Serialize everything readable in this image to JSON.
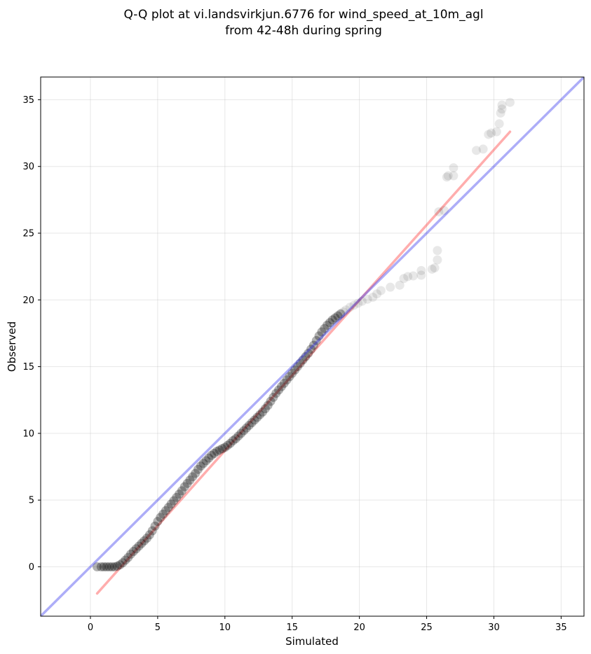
{
  "chart_data": {
    "type": "scatter",
    "title": "Q-Q plot at vi.landsvirkjun.6776 for wind_speed_at_10m_agl",
    "subtitle": "from 42-48h during spring",
    "xlabel": "Simulated",
    "ylabel": "Observed",
    "xlim": [
      -3.7,
      36.7
    ],
    "ylim": [
      -3.7,
      36.7
    ],
    "xticks": [
      "0",
      "5",
      "10",
      "15",
      "20",
      "25",
      "30",
      "35"
    ],
    "yticks": [
      "0",
      "5",
      "10",
      "15",
      "20",
      "25",
      "30",
      "35"
    ],
    "grid": true,
    "series": [
      {
        "type": "scatter",
        "color": "#000000",
        "points": [
          [
            0.5,
            0.0
          ],
          [
            0.8,
            0.0
          ],
          [
            1.0,
            0.0
          ],
          [
            1.2,
            0.0
          ],
          [
            1.4,
            0.0
          ],
          [
            1.6,
            0.0
          ],
          [
            1.8,
            0.0
          ],
          [
            2.0,
            0.05
          ],
          [
            2.2,
            0.15
          ],
          [
            2.4,
            0.3
          ],
          [
            2.6,
            0.5
          ],
          [
            2.8,
            0.7
          ],
          [
            3.0,
            0.95
          ],
          [
            3.2,
            1.15
          ],
          [
            3.4,
            1.35
          ],
          [
            3.6,
            1.55
          ],
          [
            3.8,
            1.75
          ],
          [
            4.0,
            1.95
          ],
          [
            4.2,
            2.15
          ],
          [
            4.4,
            2.4
          ],
          [
            4.6,
            2.7
          ],
          [
            4.8,
            3.05
          ],
          [
            5.0,
            3.4
          ],
          [
            5.2,
            3.7
          ],
          [
            5.4,
            3.95
          ],
          [
            5.6,
            4.2
          ],
          [
            5.8,
            4.45
          ],
          [
            6.0,
            4.7
          ],
          [
            6.2,
            4.95
          ],
          [
            6.4,
            5.2
          ],
          [
            6.6,
            5.45
          ],
          [
            6.8,
            5.7
          ],
          [
            7.0,
            6.0
          ],
          [
            7.2,
            6.25
          ],
          [
            7.4,
            6.5
          ],
          [
            7.6,
            6.75
          ],
          [
            7.8,
            7.0
          ],
          [
            8.0,
            7.3
          ],
          [
            8.2,
            7.55
          ],
          [
            8.4,
            7.75
          ],
          [
            8.6,
            7.95
          ],
          [
            8.8,
            8.15
          ],
          [
            9.0,
            8.35
          ],
          [
            9.2,
            8.5
          ],
          [
            9.4,
            8.65
          ],
          [
            9.6,
            8.75
          ],
          [
            9.8,
            8.85
          ],
          [
            10.0,
            8.95
          ],
          [
            10.2,
            9.1
          ],
          [
            10.4,
            9.25
          ],
          [
            10.6,
            9.45
          ],
          [
            10.8,
            9.6
          ],
          [
            11.0,
            9.8
          ],
          [
            11.2,
            10.0
          ],
          [
            11.4,
            10.2
          ],
          [
            11.6,
            10.4
          ],
          [
            11.8,
            10.6
          ],
          [
            12.0,
            10.8
          ],
          [
            12.2,
            11.0
          ],
          [
            12.4,
            11.2
          ],
          [
            12.6,
            11.4
          ],
          [
            12.8,
            11.6
          ],
          [
            13.0,
            11.85
          ],
          [
            13.2,
            12.1
          ],
          [
            13.4,
            12.4
          ],
          [
            13.6,
            12.7
          ],
          [
            13.8,
            13.0
          ],
          [
            14.0,
            13.25
          ],
          [
            14.2,
            13.5
          ],
          [
            14.4,
            13.75
          ],
          [
            14.6,
            14.0
          ],
          [
            14.8,
            14.25
          ],
          [
            15.0,
            14.5
          ],
          [
            15.2,
            14.75
          ],
          [
            15.4,
            15.0
          ],
          [
            15.6,
            15.25
          ],
          [
            15.8,
            15.5
          ],
          [
            16.0,
            15.75
          ],
          [
            16.2,
            16.0
          ],
          [
            16.4,
            16.3
          ],
          [
            16.6,
            16.6
          ],
          [
            16.8,
            16.95
          ],
          [
            17.0,
            17.3
          ],
          [
            17.2,
            17.6
          ],
          [
            17.4,
            17.85
          ],
          [
            17.6,
            18.1
          ],
          [
            17.8,
            18.3
          ],
          [
            18.0,
            18.5
          ],
          [
            18.2,
            18.65
          ],
          [
            18.4,
            18.8
          ],
          [
            18.6,
            18.95
          ],
          [
            18.8,
            19.1
          ],
          [
            19.0,
            19.25
          ],
          [
            19.3,
            19.45
          ],
          [
            19.6,
            19.6
          ],
          [
            19.9,
            19.75
          ],
          [
            20.2,
            19.9
          ],
          [
            20.6,
            20.05
          ],
          [
            21.0,
            20.2
          ],
          [
            21.3,
            20.45
          ],
          [
            21.6,
            20.7
          ],
          [
            22.3,
            20.95
          ],
          [
            23.0,
            21.1
          ],
          [
            23.3,
            21.6
          ],
          [
            23.6,
            21.75
          ],
          [
            24.0,
            21.8
          ],
          [
            24.6,
            21.85
          ],
          [
            24.6,
            22.2
          ],
          [
            25.4,
            22.3
          ],
          [
            25.6,
            22.4
          ],
          [
            25.8,
            23.0
          ],
          [
            25.8,
            23.7
          ],
          [
            25.9,
            26.6
          ],
          [
            26.3,
            26.7
          ],
          [
            26.5,
            29.2
          ],
          [
            26.6,
            29.3
          ],
          [
            27.0,
            29.3
          ],
          [
            27.0,
            29.9
          ],
          [
            28.7,
            31.2
          ],
          [
            29.2,
            31.3
          ],
          [
            29.6,
            32.4
          ],
          [
            29.8,
            32.5
          ],
          [
            30.2,
            32.6
          ],
          [
            30.4,
            33.2
          ],
          [
            30.5,
            34.0
          ],
          [
            30.6,
            34.3
          ],
          [
            30.6,
            34.6
          ],
          [
            31.2,
            34.8
          ]
        ]
      },
      {
        "type": "line",
        "name": "",
        "color": "#ff3333",
        "x": [
          0.5,
          31.2
        ],
        "y": [
          -2.0,
          32.6
        ]
      },
      {
        "type": "line",
        "name": "",
        "color": "#3333ee",
        "x": [
          -3.7,
          36.7
        ],
        "y": [
          -3.7,
          36.7
        ]
      }
    ]
  }
}
